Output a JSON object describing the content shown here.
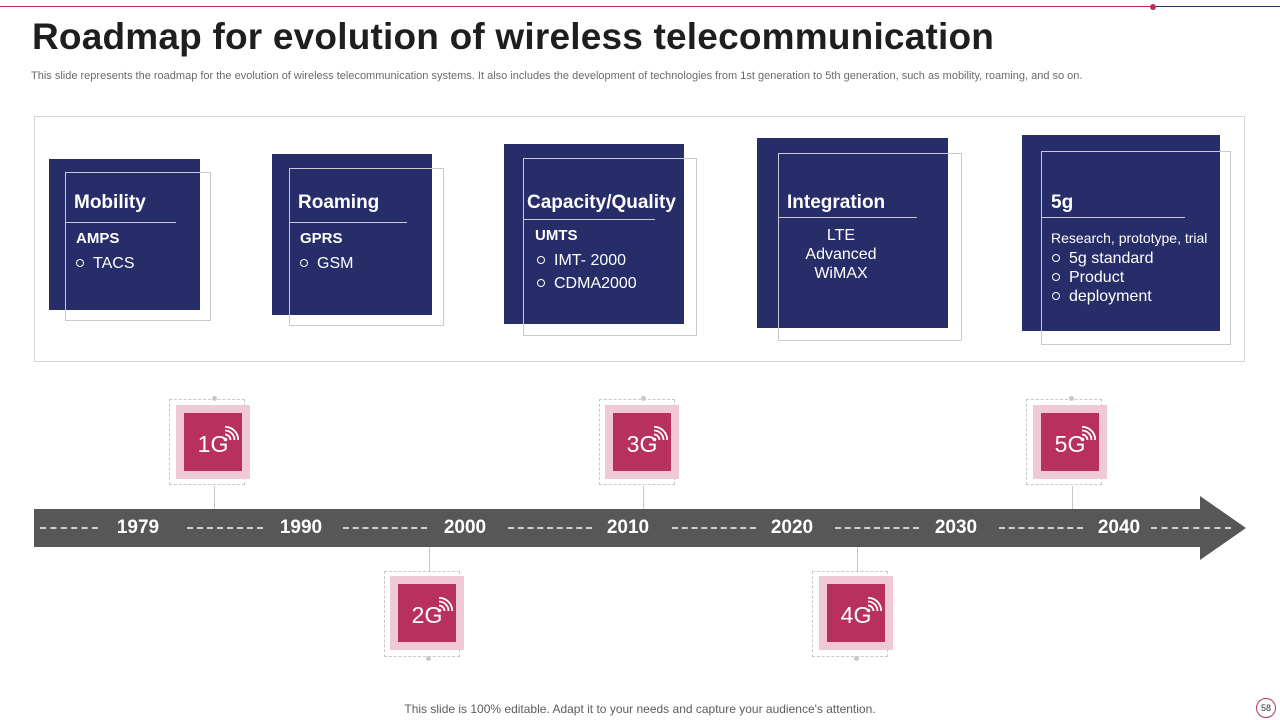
{
  "slide": {
    "title": "Roadmap for evolution of wireless telecommunication",
    "subtitle": "This slide represents the roadmap for the evolution of wireless telecommunication systems. It also includes the development of technologies from 1st generation to 5th generation, such as mobility, roaming, and so on.",
    "footer": "This slide is 100% editable. Adapt it to your needs and capture your audience's attention.",
    "page_number": "58"
  },
  "colors": {
    "navy": "#262d69",
    "magenta": "#b8305e",
    "pink_light": "#f0c9d6",
    "arrow_gray": "#575757"
  },
  "cards": [
    {
      "heading": "Mobility",
      "subheading": "AMPS",
      "items": [
        "TACS"
      ]
    },
    {
      "heading": "Roaming",
      "subheading": "GPRS",
      "items": [
        "GSM"
      ]
    },
    {
      "heading": "Capacity/Quality",
      "subheading": "UMTS",
      "items": [
        "IMT- 2000",
        "CDMA2000"
      ]
    },
    {
      "heading": "Integration",
      "lines": [
        "LTE",
        "Advanced",
        "WiMAX"
      ]
    },
    {
      "heading": "5g",
      "intro": "Research, prototype, trial",
      "items": [
        "5g standard",
        "Product",
        "deployment"
      ]
    }
  ],
  "timeline": {
    "years": [
      "1979",
      "1990",
      "2000",
      "2010",
      "2020",
      "2030",
      "2040"
    ]
  },
  "generations": [
    {
      "label": "1G",
      "icon": "wifi-signal-icon"
    },
    {
      "label": "2G",
      "icon": "wifi-signal-icon"
    },
    {
      "label": "3G",
      "icon": "wifi-signal-icon"
    },
    {
      "label": "4G",
      "icon": "wifi-signal-icon"
    },
    {
      "label": "5G",
      "icon": "wifi-signal-icon"
    }
  ]
}
